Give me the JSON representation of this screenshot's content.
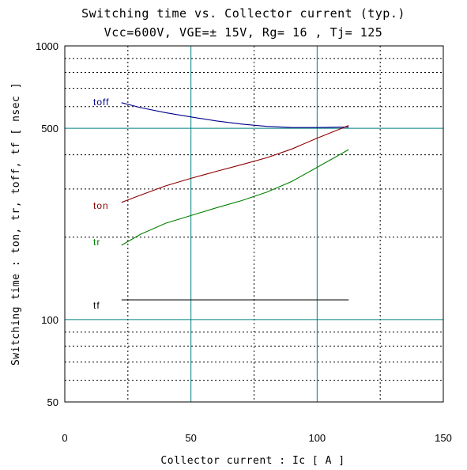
{
  "chart_data": {
    "type": "line",
    "title": "Switching time  vs.  Collector current  (typ.)",
    "subtitle": "Vcc=600V, VGE=± 15V, Rg= 16    , Tj= 125",
    "xlabel": "Collector current  :  Ic  [ A ]",
    "ylabel": "Switching time  :  ton, tr, toff, tf  [ nsec ]",
    "xlim": [
      0,
      150
    ],
    "ylim": [
      50,
      1000
    ],
    "y_scale": "log",
    "x_ticks": [
      "0",
      "50",
      "100",
      "150"
    ],
    "y_ticks": [
      "50",
      "100",
      "500",
      "1000"
    ],
    "x_ticks_values": [
      0,
      50,
      100,
      150
    ],
    "y_ticks_values": [
      50,
      100,
      500,
      1000
    ],
    "grid": true,
    "legend": "inline",
    "colors": {
      "major_grid": "#008080",
      "minor_grid": "#000000",
      "toff": "#00008b",
      "ton": "#8b0000",
      "tr": "#008000",
      "tf": "#000000"
    },
    "series": [
      {
        "name": "toff",
        "x": [
          22.5,
          30,
          40,
          50,
          60,
          70,
          80,
          90,
          100,
          112.5
        ],
        "y": [
          620,
          595,
          570,
          550,
          532,
          518,
          508,
          503,
          503,
          505
        ]
      },
      {
        "name": "ton",
        "x": [
          22.5,
          30,
          40,
          50,
          60,
          70,
          80,
          90,
          100,
          112.5
        ],
        "y": [
          268,
          285,
          308,
          328,
          348,
          368,
          390,
          420,
          460,
          512
        ]
      },
      {
        "name": "tr",
        "x": [
          22.5,
          30,
          40,
          50,
          60,
          70,
          80,
          90,
          100,
          112.5
        ],
        "y": [
          187,
          205,
          225,
          240,
          256,
          272,
          292,
          320,
          360,
          418
        ]
      },
      {
        "name": "tf",
        "x": [
          22.5,
          112.5
        ],
        "y": [
          118,
          118
        ]
      }
    ]
  }
}
